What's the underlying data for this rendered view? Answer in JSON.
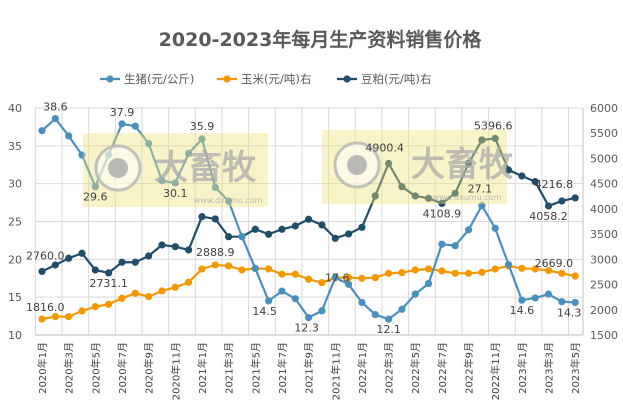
{
  "chart_data": {
    "type": "line",
    "title": "2020-2023年每月生产资料销售价格",
    "legend_placement": "top",
    "grid": true,
    "y_left": {
      "min": 10,
      "max": 40,
      "step": 5
    },
    "y_right": {
      "min": 1500,
      "max": 6000,
      "step": 500
    },
    "categories": [
      "2020年1月",
      "2020年2月",
      "2020年3月",
      "2020年4月",
      "2020年5月",
      "2020年6月",
      "2020年7月",
      "2020年8月",
      "2020年9月",
      "2020年10月",
      "2020年11月",
      "2020年12月",
      "2021年1月",
      "2021年2月",
      "2021年3月",
      "2021年4月",
      "2021年5月",
      "2021年6月",
      "2021年7月",
      "2021年8月",
      "2021年9月",
      "2021年10月",
      "2021年11月",
      "2021年12月",
      "2022年1月",
      "2022年2月",
      "2022年3月",
      "2022年4月",
      "2022年5月",
      "2022年6月",
      "2022年7月",
      "2022年8月",
      "2022年9月",
      "2022年10月",
      "2022年11月",
      "2022年12月",
      "2023年1月",
      "2023年2月",
      "2023年3月",
      "2023年4月",
      "2023年5月"
    ],
    "tick_labels": [
      "2020年1月",
      "2020年3月",
      "2020年5月",
      "2020年7月",
      "2020年9月",
      "2020年11月",
      "2021年1月",
      "2021年3月",
      "2021年5月",
      "2021年7月",
      "2021年9月",
      "2021年11月",
      "2022年1月",
      "2022年3月",
      "2022年5月",
      "2022年7月",
      "2022年9月",
      "2022年11月",
      "2023年1月",
      "2023年3月",
      "2023年5月"
    ],
    "series": [
      {
        "name": "生猪(元/公斤)",
        "axis": "left",
        "color": "#4a90be",
        "values": [
          37.0,
          38.6,
          36.3,
          33.8,
          29.6,
          33.8,
          37.9,
          37.6,
          35.3,
          30.4,
          30.1,
          34.0,
          35.9,
          29.5,
          27.7,
          23.0,
          18.8,
          14.5,
          15.8,
          14.8,
          12.3,
          13.2,
          17.6,
          16.7,
          14.3,
          12.7,
          12.1,
          13.4,
          15.4,
          16.8,
          22.0,
          21.8,
          23.9,
          27.1,
          24.1,
          19.3,
          14.6,
          14.9,
          15.4,
          14.4,
          14.3
        ],
        "labels": {
          "1": "38.6",
          "4": "29.6",
          "6": "37.9",
          "10": "30.1",
          "12": "35.9",
          "17": "14.5",
          "20": "12.3",
          "22": "17.6",
          "26": "12.1",
          "33": "27.1",
          "36": "14.6",
          "40": "14.3"
        }
      },
      {
        "name": "玉米(元/吨)右",
        "axis": "right",
        "color": "#f39800",
        "values": [
          1816.0,
          1864,
          1864,
          1976,
          2062,
          2109,
          2228,
          2327,
          2261,
          2373,
          2446,
          2545,
          2809,
          2888.9,
          2869,
          2789,
          2822,
          2809,
          2704,
          2704,
          2605,
          2537,
          2637,
          2637,
          2624,
          2637,
          2723,
          2736,
          2789,
          2809,
          2769,
          2723,
          2723,
          2743,
          2809,
          2869,
          2822,
          2809,
          2776,
          2723,
          2669.0
        ],
        "labels": {
          "0": "1816.0",
          "13": "2888.9",
          "40": "2669.0"
        }
      },
      {
        "name": "豆粕(元/吨)右",
        "axis": "right",
        "color": "#1f4e6b",
        "values": [
          2760.0,
          2888,
          3021,
          3120,
          2789,
          2731.1,
          2942,
          2942,
          3067,
          3285,
          3251,
          3186,
          3846,
          3800,
          3449,
          3449,
          3596,
          3497,
          3596,
          3661,
          3794,
          3681,
          3417,
          3503,
          3635,
          4256,
          4900.4,
          4440,
          4256,
          4210,
          4108.9,
          4309,
          4904,
          5366,
          5396.6,
          4771,
          4652,
          4540,
          4058.2,
          4157,
          4216.8
        ],
        "labels": {
          "0": "2760.0",
          "5": "2731.1",
          "26": "4900.4",
          "30": "4108.9",
          "34": "5396.6",
          "38": "4058.2",
          "40": "4216.8"
        }
      }
    ]
  },
  "watermark": {
    "brand": "大畜牧",
    "url": "www.dxumu.com"
  }
}
